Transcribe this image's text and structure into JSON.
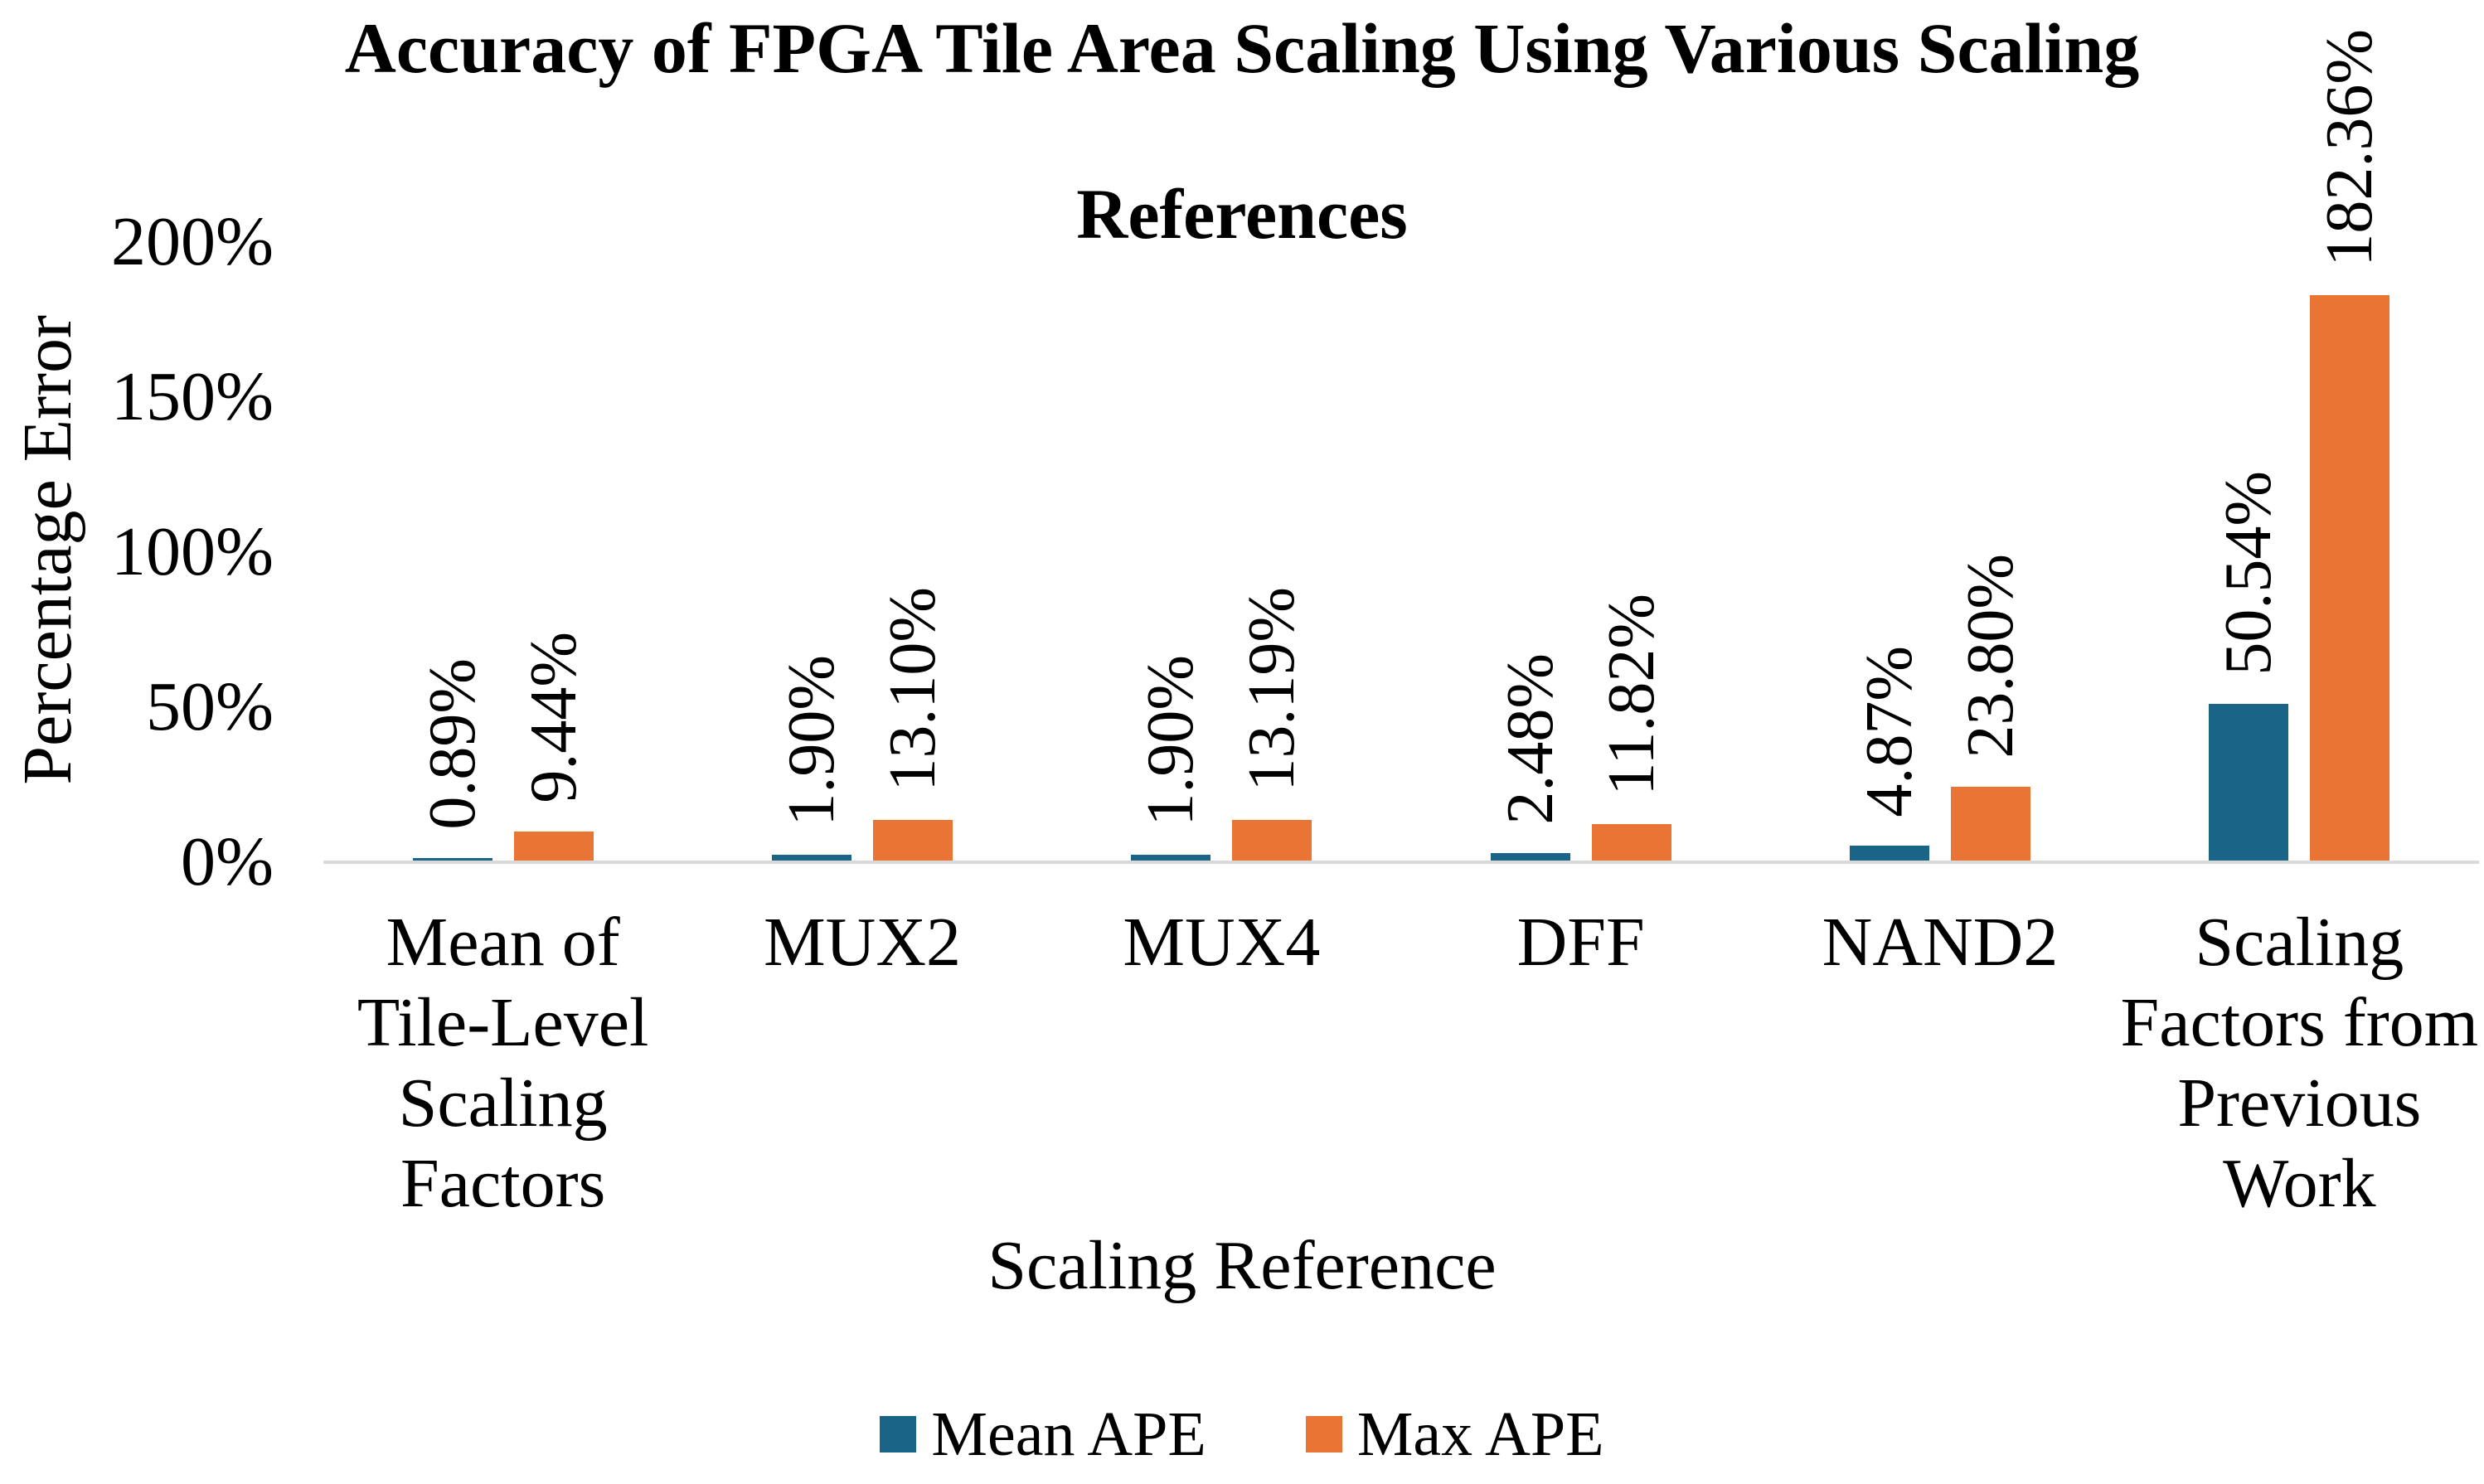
{
  "title": {
    "lines": [
      "Accuracy of FPGA Tile Area Scaling Using Various Scaling",
      "References"
    ]
  },
  "y_axis": {
    "title": "Percentage Error",
    "ticks": [
      {
        "value": 0,
        "label": "0%"
      },
      {
        "value": 50,
        "label": "50%"
      },
      {
        "value": 100,
        "label": "100%"
      },
      {
        "value": 150,
        "label": "150%"
      },
      {
        "value": 200,
        "label": "200%"
      }
    ]
  },
  "x_axis": {
    "title": "Scaling Reference"
  },
  "legend": {
    "entries": [
      {
        "label": "Mean APE"
      },
      {
        "label": "Max APE"
      }
    ]
  },
  "colors": {
    "mean_ape": "#196487",
    "max_ape": "#E97433",
    "axis_line": "#D9D9D9",
    "text": "#000000",
    "background": "#FFFFFF"
  },
  "chart_data": {
    "type": "bar",
    "categories": [
      "Mean of\nTile-Level\nScaling\nFactors",
      "MUX2",
      "MUX4",
      "DFF",
      "NAND2",
      "Scaling\nFactors from\nPrevious\nWork"
    ],
    "series": [
      {
        "name": "Mean APE",
        "color": "#196487",
        "values": [
          0.89,
          1.9,
          1.9,
          2.48,
          4.87,
          50.54
        ],
        "labels": [
          "0.89%",
          "1.90%",
          "1.90%",
          "2.48%",
          "4.87%",
          "50.54%"
        ]
      },
      {
        "name": "Max APE",
        "color": "#E97433",
        "values": [
          9.44,
          13.1,
          13.19,
          11.82,
          23.8,
          182.36
        ],
        "labels": [
          "9.44%",
          "13.10%",
          "13.19%",
          "11.82%",
          "23.80%",
          "182.36%"
        ]
      }
    ],
    "title": "Accuracy of FPGA Tile Area Scaling Using Various Scaling References",
    "xlabel": "Scaling Reference",
    "ylabel": "Percentage Error",
    "ylim": [
      0,
      200
    ],
    "y_tick_interval": 50,
    "grid": false,
    "data_label_rotation": 90,
    "legend_position": "bottom"
  }
}
